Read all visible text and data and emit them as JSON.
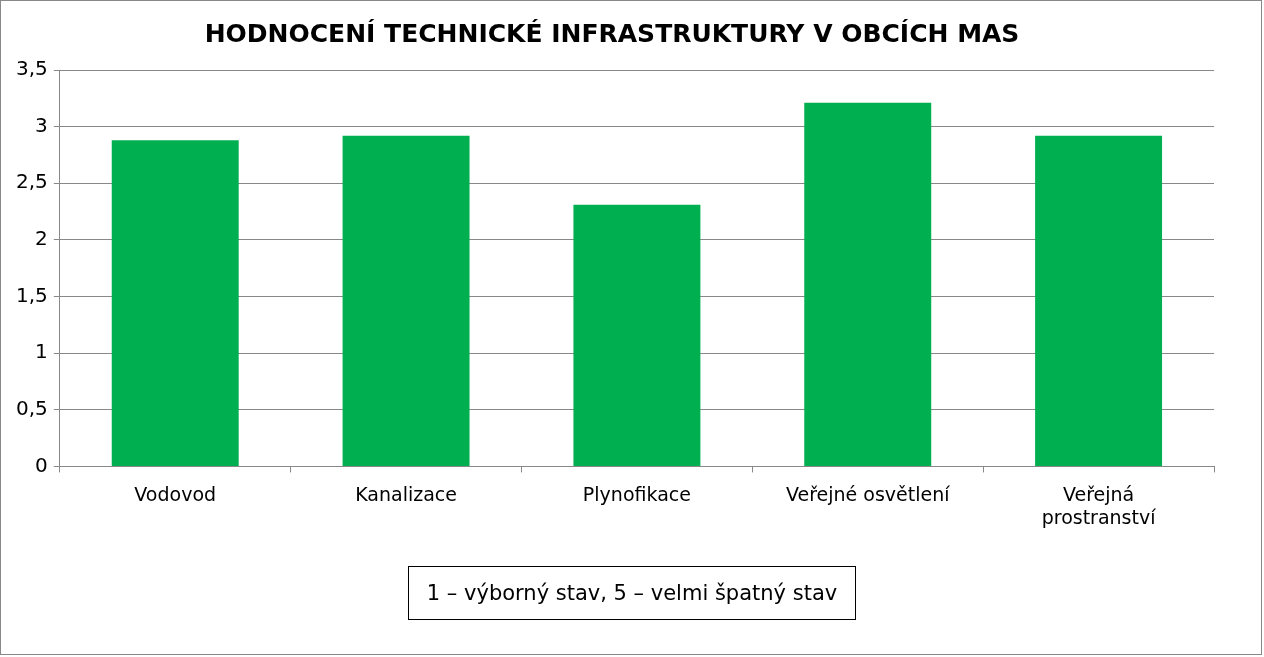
{
  "chart_data": {
    "type": "bar",
    "title": "HODNOCENÍ TECHNICKÉ INFRASTRUKTURY V OBCÍCH MAS",
    "categories": [
      "Vodovod",
      "Kanalizace",
      "Plynofikace",
      "Veřejné osvětlení",
      "Veřejná prostranství"
    ],
    "values": [
      2.88,
      2.92,
      2.31,
      3.21,
      2.92
    ],
    "color": "#00b050",
    "ylim": [
      0,
      3.5
    ],
    "yticks": [
      {
        "value": 0,
        "label": "0"
      },
      {
        "value": 0.5,
        "label": "0,5"
      },
      {
        "value": 1,
        "label": "1"
      },
      {
        "value": 1.5,
        "label": "1,5"
      },
      {
        "value": 2,
        "label": "2"
      },
      {
        "value": 2.5,
        "label": "2,5"
      },
      {
        "value": 3,
        "label": "3"
      },
      {
        "value": 3.5,
        "label": "3,5"
      }
    ],
    "grid": "y",
    "legend": false,
    "annotations": [
      "1 – výborný stav, 5 – velmi špatný stav"
    ]
  }
}
